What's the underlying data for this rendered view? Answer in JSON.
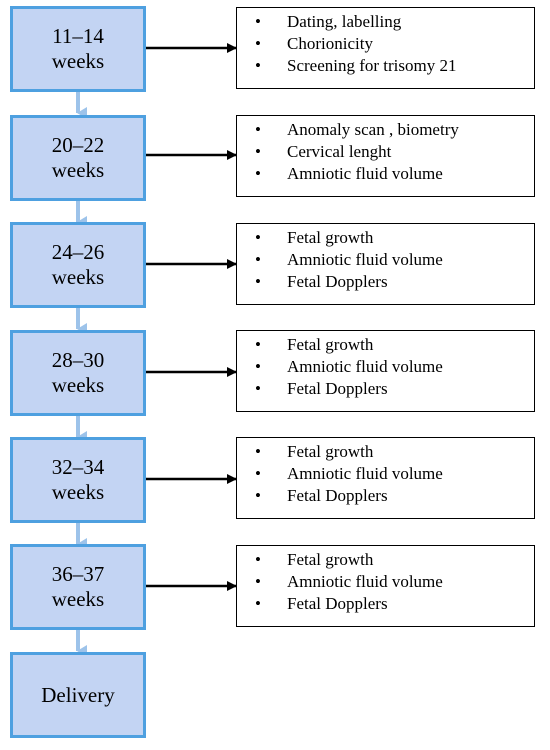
{
  "stages": [
    {
      "line1": "11–14",
      "line2": "weeks",
      "items": [
        "Dating, labelling",
        "Chorionicity",
        "Screening for trisomy 21"
      ]
    },
    {
      "line1": "20–22",
      "line2": "weeks",
      "items": [
        "Anomaly scan , biometry",
        "Cervical lenght",
        "Amniotic fluid volume"
      ]
    },
    {
      "line1": "24–26",
      "line2": "weeks",
      "items": [
        "Fetal growth",
        "Amniotic fluid volume",
        "Fetal Dopplers"
      ]
    },
    {
      "line1": "28–30",
      "line2": "weeks",
      "items": [
        "Fetal growth",
        "Amniotic fluid volume",
        "Fetal Dopplers"
      ]
    },
    {
      "line1": "32–34",
      "line2": "weeks",
      "items": [
        "Fetal growth",
        "Amniotic fluid volume",
        "Fetal Dopplers"
      ]
    },
    {
      "line1": "36–37",
      "line2": "weeks",
      "items": [
        "Fetal growth",
        "Amniotic fluid volume",
        "Fetal Dopplers"
      ]
    }
  ],
  "final": {
    "label": "Delivery"
  },
  "colors": {
    "stage_fill": "#c3d4f3",
    "stage_border": "#4ea0e0",
    "down_arrow": "#9dc3ea",
    "right_arrow": "#000000"
  }
}
